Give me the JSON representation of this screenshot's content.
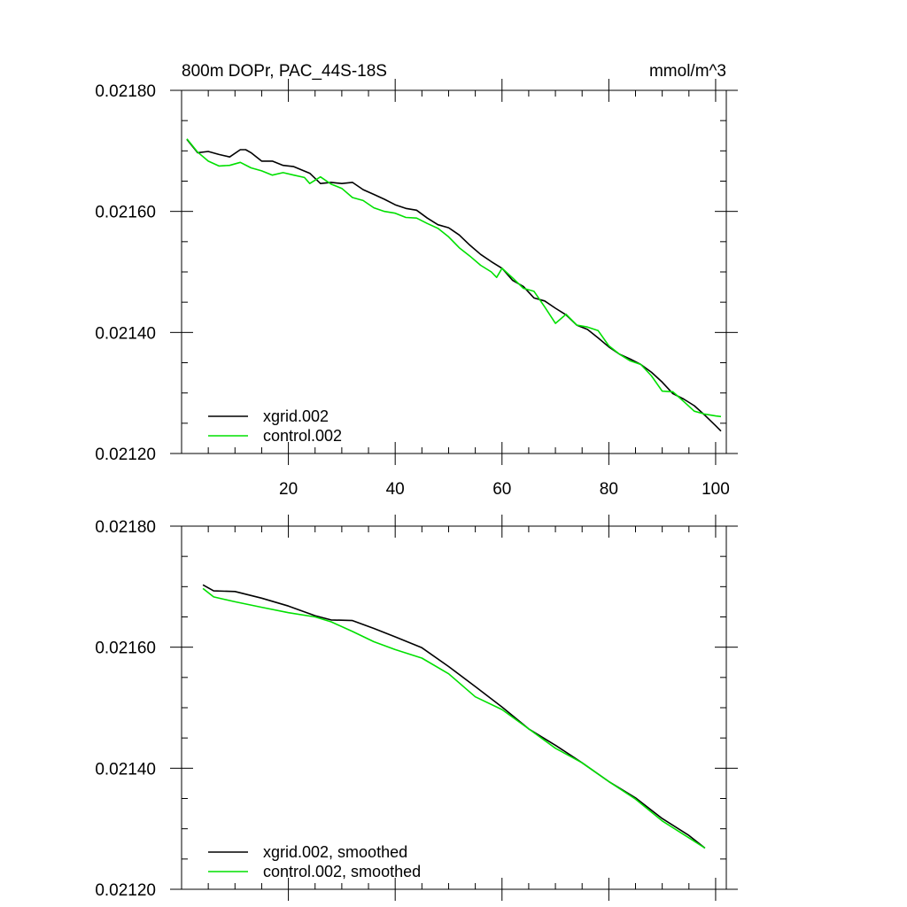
{
  "figure": {
    "title": "800m DOPr, PAC_44S-18S",
    "units": "mmol/m^3"
  },
  "chart_data": [
    {
      "type": "line",
      "title": "800m DOPr, PAC_44S-18S",
      "units": "mmol/m^3",
      "xlabel": "",
      "ylabel": "",
      "xlim": [
        0,
        102
      ],
      "ylim": [
        0.0212,
        0.0218
      ],
      "x_ticks": [
        20,
        40,
        60,
        80,
        100
      ],
      "x_tick_labels": [
        "20",
        "40",
        "60",
        "80",
        "100"
      ],
      "x_minor_step": 5,
      "y_ticks": [
        0.0212,
        0.0214,
        0.0216,
        0.0218
      ],
      "y_tick_labels": [
        "0.02120",
        "0.02140",
        "0.02160",
        "0.02180"
      ],
      "y_minor_step": 5e-05,
      "grid": false,
      "legend_position": "bottom-left",
      "series": [
        {
          "name": "xgrid.002",
          "color": "#000000",
          "x": [
            1,
            3,
            5,
            7,
            9,
            11,
            12,
            13,
            15,
            17,
            19,
            21,
            24,
            26,
            28,
            30,
            32,
            34,
            36,
            38,
            40,
            42,
            44,
            46,
            48,
            50,
            52,
            54,
            56,
            58,
            60,
            62,
            64,
            66,
            68,
            70,
            72,
            74,
            76,
            78,
            80,
            82,
            84,
            86,
            88,
            90,
            92,
            94,
            96,
            98,
            100,
            101
          ],
          "y": [
            0.021719,
            0.021697,
            0.021699,
            0.021694,
            0.02169,
            0.021702,
            0.021702,
            0.021697,
            0.021683,
            0.021683,
            0.021676,
            0.021674,
            0.021663,
            0.021646,
            0.021648,
            0.021646,
            0.021648,
            0.021636,
            0.021628,
            0.02162,
            0.021611,
            0.021605,
            0.021602,
            0.021589,
            0.021578,
            0.021573,
            0.021561,
            0.021544,
            0.021529,
            0.021517,
            0.021506,
            0.021486,
            0.021476,
            0.021457,
            0.021452,
            0.02144,
            0.021429,
            0.021412,
            0.021405,
            0.021391,
            0.021376,
            0.021364,
            0.021356,
            0.021347,
            0.021334,
            0.021318,
            0.021299,
            0.02129,
            0.021279,
            0.021263,
            0.021246,
            0.021237
          ]
        },
        {
          "name": "control.002",
          "color": "#00e000",
          "x": [
            1,
            3,
            5,
            7,
            9,
            11,
            13,
            15,
            17,
            19,
            21,
            23,
            24,
            26,
            28,
            30,
            32,
            34,
            36,
            38,
            40,
            42,
            44,
            46,
            48,
            50,
            52,
            54,
            56,
            58,
            59,
            60,
            62,
            64,
            66,
            68,
            70,
            72,
            74,
            76,
            78,
            80,
            82,
            84,
            86,
            88,
            90,
            92,
            94,
            96,
            98,
            100,
            101
          ],
          "y": [
            0.02172,
            0.021698,
            0.021683,
            0.021675,
            0.021676,
            0.021681,
            0.021672,
            0.021667,
            0.02166,
            0.021664,
            0.02166,
            0.021656,
            0.021646,
            0.021657,
            0.021645,
            0.021638,
            0.021623,
            0.021618,
            0.021606,
            0.0216,
            0.021597,
            0.02159,
            0.021589,
            0.02158,
            0.021572,
            0.021558,
            0.02154,
            0.021526,
            0.021511,
            0.0215,
            0.021491,
            0.021506,
            0.02149,
            0.021473,
            0.021468,
            0.021442,
            0.021415,
            0.02143,
            0.021412,
            0.021409,
            0.021403,
            0.021378,
            0.021364,
            0.021353,
            0.021347,
            0.021328,
            0.021303,
            0.021302,
            0.021286,
            0.02127,
            0.021265,
            0.021262,
            0.021261
          ]
        }
      ]
    },
    {
      "type": "line",
      "title": "",
      "xlabel": "",
      "ylabel": "",
      "xlim": [
        0,
        102
      ],
      "ylim": [
        0.0212,
        0.0218
      ],
      "x_ticks": [
        20,
        40,
        60,
        80,
        100
      ],
      "x_minor_step": 5,
      "y_ticks": [
        0.0212,
        0.0214,
        0.0216,
        0.0218
      ],
      "y_tick_labels": [
        "0.02120",
        "0.02140",
        "0.02160",
        "0.02180"
      ],
      "y_minor_step": 5e-05,
      "grid": false,
      "legend_position": "bottom-left",
      "series": [
        {
          "name": "xgrid.002, smoothed",
          "color": "#000000",
          "x": [
            4,
            6,
            10,
            15,
            20,
            25,
            28,
            32,
            36,
            40,
            45,
            50,
            55,
            60,
            65,
            70,
            75,
            80,
            85,
            90,
            95,
            98
          ],
          "y": [
            0.021703,
            0.021693,
            0.021692,
            0.021681,
            0.021668,
            0.021652,
            0.021645,
            0.021644,
            0.021631,
            0.021617,
            0.021599,
            0.021568,
            0.021535,
            0.021501,
            0.021465,
            0.021438,
            0.021409,
            0.021378,
            0.021351,
            0.021317,
            0.021289,
            0.021268
          ]
        },
        {
          "name": "control.002, smoothed",
          "color": "#00e000",
          "x": [
            4,
            6,
            10,
            15,
            20,
            25,
            28,
            32,
            36,
            40,
            45,
            50,
            55,
            60,
            65,
            70,
            75,
            80,
            85,
            90,
            95,
            98
          ],
          "y": [
            0.021697,
            0.021683,
            0.021675,
            0.021666,
            0.021657,
            0.02165,
            0.021642,
            0.021626,
            0.021609,
            0.021596,
            0.021582,
            0.021556,
            0.021518,
            0.021497,
            0.021465,
            0.021433,
            0.021409,
            0.021378,
            0.021349,
            0.021313,
            0.021285,
            0.021268
          ]
        }
      ]
    }
  ]
}
